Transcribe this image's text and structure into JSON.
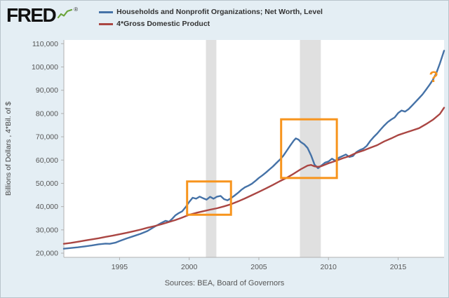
{
  "header": {
    "logo_text": "FRED",
    "registered_mark": "®"
  },
  "legend": {
    "items": [
      {
        "id": "net-worth",
        "label": "Households and Nonprofit Organizations; Net Worth, Level",
        "color": "#4572a7"
      },
      {
        "id": "gdp4",
        "label": "4*Gross Domestic Product",
        "color": "#aa4643"
      }
    ]
  },
  "chart_data": {
    "type": "line",
    "title": "",
    "xlabel": "",
    "ylabel": "Billions of Dollars , 4*Bil. of $",
    "xlim": [
      1991.0,
      2018.3
    ],
    "ylim": [
      18200,
      111600
    ],
    "grid": false,
    "legend_position": "top",
    "x_ticks": [
      {
        "v": 1995,
        "label": "1995"
      },
      {
        "v": 2000,
        "label": "2000"
      },
      {
        "v": 2005,
        "label": "2005"
      },
      {
        "v": 2010,
        "label": "2010"
      },
      {
        "v": 2015,
        "label": "2015"
      }
    ],
    "y_ticks": [
      {
        "v": 20000,
        "label": "20,000"
      },
      {
        "v": 30000,
        "label": "30,000"
      },
      {
        "v": 40000,
        "label": "40,000"
      },
      {
        "v": 50000,
        "label": "50,000"
      },
      {
        "v": 60000,
        "label": "60,000"
      },
      {
        "v": 70000,
        "label": "70,000"
      },
      {
        "v": 80000,
        "label": "80,000"
      },
      {
        "v": 90000,
        "label": "90,000"
      },
      {
        "v": 100000,
        "label": "100,000"
      },
      {
        "v": 110000,
        "label": "110,000"
      }
    ],
    "colors": {
      "plot_bg": "#ffffff",
      "recession": "#e0e0e0",
      "axis": "#b0b0b0",
      "highlight": "#f7941d",
      "logo_green": "#6ba43a"
    },
    "recession_bands": [
      {
        "x1": 2001.2,
        "x2": 2001.95
      },
      {
        "x1": 2007.95,
        "x2": 2009.45
      }
    ],
    "highlight_boxes": [
      {
        "x1": 1999.85,
        "x2": 2003.0,
        "y1": 36500,
        "y2": 50800
      },
      {
        "x1": 2006.6,
        "x2": 2010.6,
        "y1": 52300,
        "y2": 77500
      }
    ],
    "annotation": {
      "x": 2017.55,
      "y": 93500,
      "text": "?"
    },
    "series": [
      {
        "id": "net-worth",
        "name": "Households and Nonprofit Organizations; Net Worth, Level",
        "color": "#4572a7",
        "width": 2.4,
        "points": [
          [
            1991.0,
            21900
          ],
          [
            1991.5,
            22200
          ],
          [
            1992.0,
            22500
          ],
          [
            1992.5,
            22900
          ],
          [
            1993.0,
            23300
          ],
          [
            1993.5,
            23800
          ],
          [
            1994.0,
            24100
          ],
          [
            1994.3,
            24000
          ],
          [
            1994.7,
            24500
          ],
          [
            1995.0,
            25200
          ],
          [
            1995.5,
            26300
          ],
          [
            1996.0,
            27300
          ],
          [
            1996.5,
            28300
          ],
          [
            1997.0,
            29500
          ],
          [
            1997.5,
            31300
          ],
          [
            1998.0,
            33000
          ],
          [
            1998.3,
            33900
          ],
          [
            1998.55,
            33500
          ],
          [
            1998.8,
            34900
          ],
          [
            1999.0,
            36200
          ],
          [
            1999.25,
            37200
          ],
          [
            1999.5,
            38000
          ],
          [
            1999.75,
            39800
          ],
          [
            2000.0,
            42000
          ],
          [
            2000.25,
            43800
          ],
          [
            2000.5,
            43400
          ],
          [
            2000.75,
            44300
          ],
          [
            2001.0,
            43600
          ],
          [
            2001.25,
            43000
          ],
          [
            2001.5,
            44200
          ],
          [
            2001.75,
            43400
          ],
          [
            2002.0,
            44300
          ],
          [
            2002.25,
            44600
          ],
          [
            2002.5,
            43200
          ],
          [
            2002.75,
            42700
          ],
          [
            2003.0,
            43600
          ],
          [
            2003.25,
            44700
          ],
          [
            2003.5,
            45900
          ],
          [
            2003.75,
            47200
          ],
          [
            2004.0,
            48300
          ],
          [
            2004.25,
            49000
          ],
          [
            2004.5,
            49800
          ],
          [
            2004.75,
            51000
          ],
          [
            2005.0,
            52300
          ],
          [
            2005.25,
            53400
          ],
          [
            2005.5,
            54600
          ],
          [
            2005.75,
            55900
          ],
          [
            2006.0,
            57200
          ],
          [
            2006.25,
            58700
          ],
          [
            2006.5,
            60100
          ],
          [
            2006.75,
            61800
          ],
          [
            2007.0,
            64000
          ],
          [
            2007.25,
            66200
          ],
          [
            2007.5,
            68300
          ],
          [
            2007.65,
            69300
          ],
          [
            2007.85,
            68800
          ],
          [
            2008.0,
            67800
          ],
          [
            2008.25,
            66800
          ],
          [
            2008.5,
            65200
          ],
          [
            2008.75,
            62000
          ],
          [
            2009.0,
            58000
          ],
          [
            2009.25,
            56500
          ],
          [
            2009.5,
            57700
          ],
          [
            2009.75,
            58900
          ],
          [
            2010.0,
            59400
          ],
          [
            2010.25,
            60600
          ],
          [
            2010.5,
            59700
          ],
          [
            2010.75,
            61000
          ],
          [
            2011.0,
            61700
          ],
          [
            2011.25,
            62400
          ],
          [
            2011.5,
            61300
          ],
          [
            2011.75,
            61700
          ],
          [
            2012.0,
            63400
          ],
          [
            2012.25,
            64300
          ],
          [
            2012.5,
            64900
          ],
          [
            2012.75,
            66100
          ],
          [
            2013.0,
            68200
          ],
          [
            2013.25,
            69900
          ],
          [
            2013.5,
            71400
          ],
          [
            2013.75,
            73200
          ],
          [
            2014.0,
            74800
          ],
          [
            2014.25,
            76300
          ],
          [
            2014.5,
            77400
          ],
          [
            2014.75,
            78300
          ],
          [
            2015.0,
            80200
          ],
          [
            2015.25,
            81300
          ],
          [
            2015.5,
            80800
          ],
          [
            2015.75,
            81900
          ],
          [
            2016.0,
            83400
          ],
          [
            2016.25,
            85000
          ],
          [
            2016.5,
            86600
          ],
          [
            2016.75,
            88200
          ],
          [
            2017.0,
            90200
          ],
          [
            2017.25,
            92300
          ],
          [
            2017.5,
            94500
          ],
          [
            2017.75,
            97500
          ],
          [
            2018.0,
            101500
          ],
          [
            2018.3,
            107000
          ]
        ]
      },
      {
        "id": "gdp4",
        "name": "4*Gross Domestic Product",
        "color": "#aa4643",
        "width": 2.4,
        "points": [
          [
            1991.0,
            24000
          ],
          [
            1991.5,
            24400
          ],
          [
            1992.0,
            24900
          ],
          [
            1992.5,
            25400
          ],
          [
            1993.0,
            25900
          ],
          [
            1993.5,
            26400
          ],
          [
            1994.0,
            27000
          ],
          [
            1994.5,
            27500
          ],
          [
            1995.0,
            28100
          ],
          [
            1995.5,
            28700
          ],
          [
            1996.0,
            29400
          ],
          [
            1996.5,
            30100
          ],
          [
            1997.0,
            30900
          ],
          [
            1997.5,
            31600
          ],
          [
            1998.0,
            32400
          ],
          [
            1998.5,
            33300
          ],
          [
            1999.0,
            34200
          ],
          [
            1999.5,
            35300
          ],
          [
            2000.0,
            36500
          ],
          [
            2000.5,
            37300
          ],
          [
            2001.0,
            38000
          ],
          [
            2001.5,
            38700
          ],
          [
            2002.0,
            39300
          ],
          [
            2002.5,
            40100
          ],
          [
            2003.0,
            41000
          ],
          [
            2003.5,
            42200
          ],
          [
            2004.0,
            43500
          ],
          [
            2004.5,
            44900
          ],
          [
            2005.0,
            46300
          ],
          [
            2005.5,
            47800
          ],
          [
            2006.0,
            49300
          ],
          [
            2006.5,
            50900
          ],
          [
            2007.0,
            52400
          ],
          [
            2007.5,
            54100
          ],
          [
            2008.0,
            56000
          ],
          [
            2008.5,
            57600
          ],
          [
            2008.75,
            57900
          ],
          [
            2009.0,
            57300
          ],
          [
            2009.25,
            57100
          ],
          [
            2009.5,
            57400
          ],
          [
            2010.0,
            58600
          ],
          [
            2010.5,
            59600
          ],
          [
            2011.0,
            60700
          ],
          [
            2011.5,
            61700
          ],
          [
            2012.0,
            63100
          ],
          [
            2012.5,
            64100
          ],
          [
            2013.0,
            65300
          ],
          [
            2013.5,
            66400
          ],
          [
            2014.0,
            68000
          ],
          [
            2014.5,
            69300
          ],
          [
            2015.0,
            70700
          ],
          [
            2015.5,
            71700
          ],
          [
            2016.0,
            72700
          ],
          [
            2016.5,
            73700
          ],
          [
            2017.0,
            75400
          ],
          [
            2017.5,
            77300
          ],
          [
            2018.0,
            79800
          ],
          [
            2018.3,
            82500
          ]
        ]
      }
    ]
  },
  "footer": {
    "source": "Sources: BEA, Board of Governors"
  }
}
